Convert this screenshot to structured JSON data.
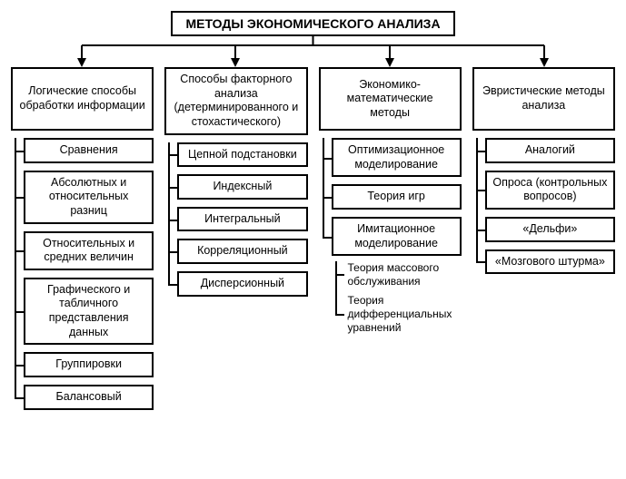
{
  "type": "tree",
  "background_color": "#ffffff",
  "border_color": "#000000",
  "border_width": 2,
  "font_family": "Arial",
  "title_fontsize": 14,
  "header_fontsize": 12.5,
  "item_fontsize": 12.5,
  "subitem_fontsize": 12,
  "root": {
    "label": "МЕТОДЫ ЭКОНОМИЧЕСКОГО АНАЛИЗА"
  },
  "columns": [
    {
      "header": "Логические способы обработки информации",
      "items": [
        {
          "label": "Сравнения"
        },
        {
          "label": "Абсолютных и относительных разниц"
        },
        {
          "label": "Относительных и средних величин"
        },
        {
          "label": "Графического и табличного представления данных"
        },
        {
          "label": "Группировки"
        },
        {
          "label": "Балансовый"
        }
      ]
    },
    {
      "header": "Способы факторного анализа (детерминированного и стохастического)",
      "items": [
        {
          "label": "Цепной подстановки"
        },
        {
          "label": "Индексный"
        },
        {
          "label": "Интегральный"
        },
        {
          "label": "Корреляционный"
        },
        {
          "label": "Дисперсионный"
        }
      ]
    },
    {
      "header": "Экономико-математические методы",
      "items": [
        {
          "label": "Оптимизацион­ное моделиро­вание"
        },
        {
          "label": "Теория игр"
        },
        {
          "label": "Имитационное моделиро­вание",
          "subitems": [
            {
              "label": "Теория массового обслуживания"
            },
            {
              "label": "Теория дифференциальных уравнений"
            }
          ]
        }
      ]
    },
    {
      "header": "Эвристические методы анализа",
      "items": [
        {
          "label": "Аналогий"
        },
        {
          "label": "Опроса (контрольных вопросов)"
        },
        {
          "label": "«Дельфи»"
        },
        {
          "label": "«Мозгового штурма»"
        }
      ]
    }
  ]
}
